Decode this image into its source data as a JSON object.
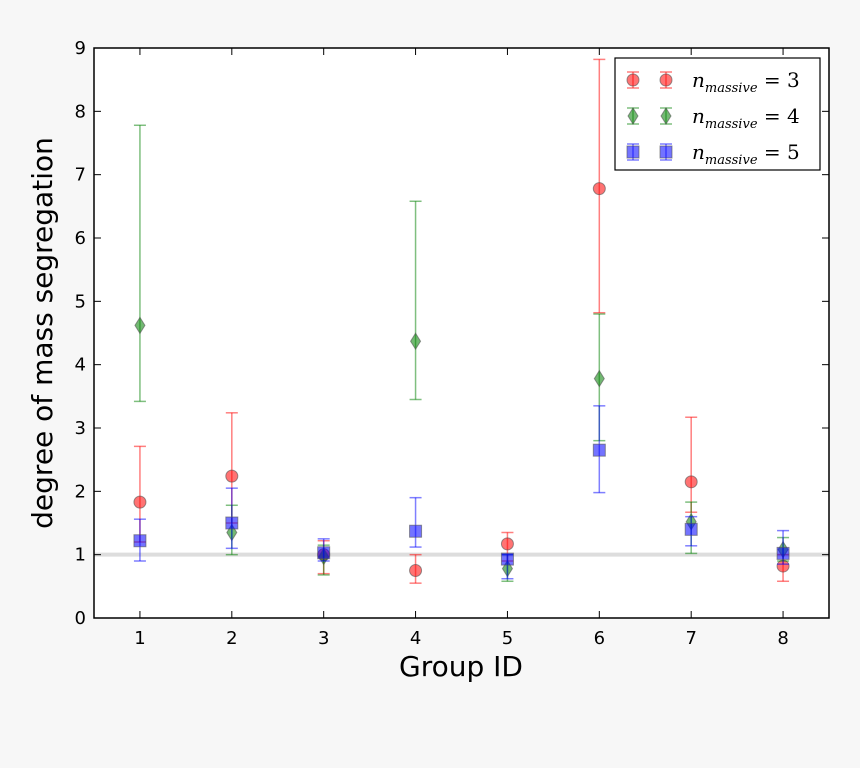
{
  "chart_data": {
    "type": "scatter",
    "title": "",
    "xlabel": "Group ID",
    "ylabel": "degree of mass segregation",
    "xlim": [
      0.5,
      8.5
    ],
    "ylim": [
      0,
      9
    ],
    "xticks": [
      "1",
      "2",
      "3",
      "4",
      "5",
      "6",
      "7",
      "8"
    ],
    "yticks": [
      "0",
      "1",
      "2",
      "3",
      "4",
      "5",
      "6",
      "7",
      "8",
      "9"
    ],
    "reference_line": 1,
    "grid": false,
    "legend_placement": "top-right",
    "x": [
      1,
      2,
      3,
      4,
      5,
      6,
      7,
      8
    ],
    "series": [
      {
        "name": "n_massive = 3",
        "name_base": "n",
        "name_sub": "massive",
        "name_rest": "= 3",
        "color": "#ff0000",
        "marker": "circle",
        "values": [
          1.83,
          2.24,
          1.0,
          0.75,
          1.17,
          6.78,
          2.15,
          0.82
        ],
        "err_low": [
          1.2,
          1.5,
          0.7,
          0.55,
          0.9,
          4.82,
          1.67,
          0.58
        ],
        "err_high": [
          2.71,
          3.24,
          1.22,
          1.0,
          1.35,
          8.82,
          3.17,
          1.0
        ]
      },
      {
        "name": "n_massive = 4",
        "name_base": "n",
        "name_sub": "massive",
        "name_rest": "= 4",
        "color": "#008000",
        "marker": "diamond",
        "values": [
          4.62,
          1.35,
          0.97,
          4.37,
          0.78,
          3.78,
          1.52,
          1.08
        ],
        "err_low": [
          3.42,
          1.0,
          0.68,
          3.45,
          0.58,
          2.8,
          1.02,
          0.9
        ],
        "err_high": [
          7.78,
          1.78,
          1.15,
          6.58,
          1.0,
          4.8,
          1.83,
          1.27
        ]
      },
      {
        "name": "n_massive = 5",
        "name_base": "n",
        "name_sub": "massive",
        "name_rest": "= 5",
        "color": "#0000ff",
        "marker": "square",
        "values": [
          1.22,
          1.5,
          1.03,
          1.37,
          0.93,
          2.65,
          1.4,
          1.02
        ],
        "err_low": [
          0.9,
          1.1,
          0.9,
          1.12,
          0.62,
          1.98,
          1.14,
          0.85
        ],
        "err_high": [
          1.56,
          2.05,
          1.25,
          1.9,
          1.0,
          3.35,
          1.6,
          1.38
        ]
      }
    ]
  }
}
